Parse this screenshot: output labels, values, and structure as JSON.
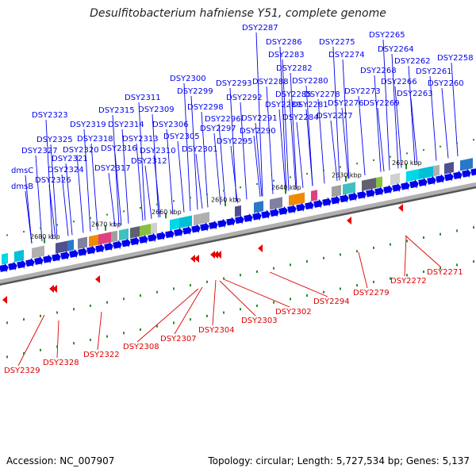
{
  "title": "Desulfitobacterium hafniense Y51, complete genome",
  "footer": {
    "accession": "Accession: NC_007907",
    "summary": "Topology: circular; Length: 5,727,534 bp; Genes: 5,137"
  },
  "colors": {
    "forward_gene": "#0000ee",
    "label_blue": "#0000ee",
    "label_red": "#dd0000",
    "backbone": "#888888",
    "tick_green": "#2a8a2a"
  },
  "ticks": [
    "2620 kbp",
    "2630 kbp",
    "2640 kbp",
    "2650 kbp",
    "2660 kbp",
    "2670 kbp",
    "2680 kbp"
  ],
  "blue_labels": [
    "DSY2287",
    "DSY2265",
    "DSY2275",
    "DSY2286",
    "DSY2264",
    "DSY2274",
    "DSY2283",
    "DSY2262",
    "DSY2258",
    "DSY2282",
    "DSY2268",
    "DSY2261",
    "DSY2300",
    "DSY2293",
    "DSY2288",
    "DSY2280",
    "DSY2266",
    "DSY2260",
    "DSY2299",
    "DSY2285",
    "DSY2278",
    "DSY2273",
    "DSY2263",
    "DSY2311",
    "DSY2292",
    "DSY2289",
    "DSY2281",
    "DSY2276",
    "DSY2269",
    "DSY2315",
    "DSY2309",
    "DSY2298",
    "DSY2323",
    "DSY2296",
    "DSY2291",
    "DSY2284",
    "DSY2277",
    "DSY2319",
    "DSY2314",
    "DSY2306",
    "DSY2297",
    "DSY2290",
    "DSY2325",
    "DSY2318",
    "DSY2313",
    "DSY2305",
    "DSY2295",
    "DSY2327",
    "DSY2320",
    "DSY2316",
    "DSY2310",
    "DSY2301",
    "DSY2321",
    "DSY2312",
    "dmsC",
    "DSY2324",
    "DSY2317",
    "DSY2326",
    "dmsB"
  ],
  "red_labels": [
    "DSY2271",
    "DSY2272",
    "DSY2279",
    "DSY2294",
    "DSY2302",
    "DSY2303",
    "DSY2304",
    "DSY2307",
    "DSY2308",
    "DSY2322",
    "DSY2328",
    "DSY2329"
  ]
}
